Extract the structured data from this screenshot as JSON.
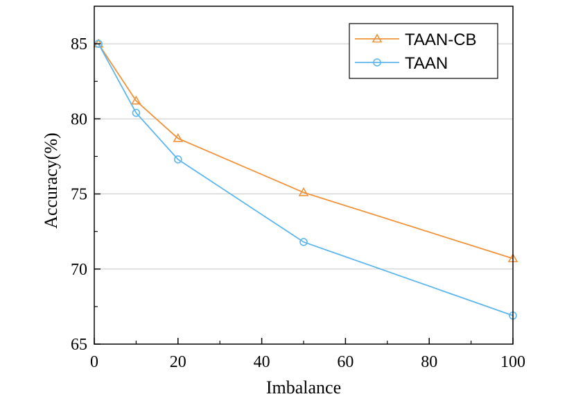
{
  "chart_data": {
    "type": "line",
    "title": "",
    "xlabel": "Imbalance",
    "ylabel": "Accuracy(%)",
    "xlim": [
      0,
      100
    ],
    "ylim": [
      65,
      87.5
    ],
    "xticks": [
      0,
      20,
      40,
      60,
      80,
      100
    ],
    "yticks": [
      65,
      70,
      75,
      80,
      85
    ],
    "grid": "horizontal",
    "legend_position": "top-right",
    "series": [
      {
        "name": "TAAN-CB",
        "marker": "triangle",
        "color": "#F0923A",
        "x": [
          1,
          10,
          20,
          50,
          100
        ],
        "y": [
          85.0,
          81.2,
          78.7,
          75.1,
          70.7
        ]
      },
      {
        "name": "TAAN",
        "marker": "circle",
        "color": "#5DB7EC",
        "x": [
          1,
          10,
          20,
          50,
          100
        ],
        "y": [
          85.0,
          80.4,
          77.3,
          71.8,
          66.9
        ]
      }
    ]
  }
}
